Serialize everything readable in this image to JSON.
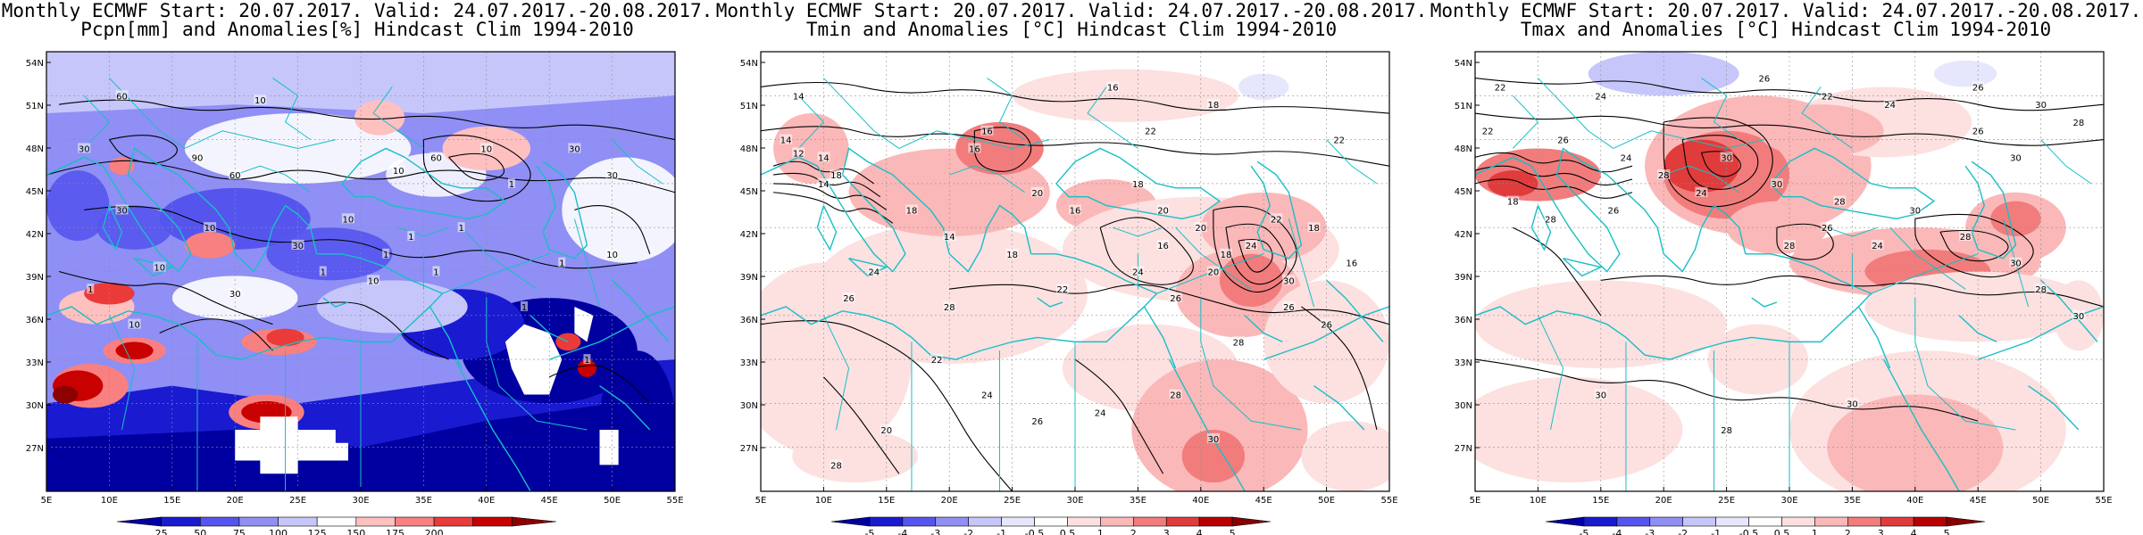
{
  "panels": [
    {
      "title_line1": "Monthly ECMWF Start: 20.07.2017. Valid: 24.07.2017.-20.08.2017.",
      "title_line2": "Pcpn[mm] and Anomalies[%] Hindcast Clim 1994-2010",
      "colorbar": {
        "labels": [
          "25",
          "50",
          "75",
          "100",
          "125",
          "150",
          "175",
          "200"
        ],
        "colors": [
          "#0000a0",
          "#1a1ad0",
          "#5555ee",
          "#8f8ff5",
          "#c6c6fb",
          "#ffffff",
          "#ffc0c0",
          "#f98080",
          "#ea3a3a",
          "#c80000",
          "#8c0000"
        ]
      },
      "contour_labels": [
        "60",
        "10",
        "30",
        "90",
        "60",
        "30",
        "10",
        "30",
        "10",
        "1",
        "10",
        "30",
        "60",
        "10",
        "1",
        "10",
        "1",
        "1",
        "30",
        "10",
        "1",
        "10",
        "1",
        "1",
        "1",
        "10",
        "1",
        "1",
        "30"
      ]
    },
    {
      "title_line1": "Monthly ECMWF Start: 20.07.2017. Valid: 24.07.2017.-20.08.2017.",
      "title_line2": "Tmin and Anomalies [°C] Hindcast Clim 1994-2010",
      "colorbar": {
        "labels": [
          "-5",
          "-4",
          "-3",
          "-2",
          "-1",
          "-0.5",
          "0.5",
          "1",
          "2",
          "3",
          "4",
          "5"
        ],
        "colors": [
          "#0000a0",
          "#1a1ad0",
          "#5555ee",
          "#8f8ff5",
          "#c6c6fb",
          "#e6e6fd",
          "#ffffff",
          "#fde0e0",
          "#fbb8b8",
          "#f27c7c",
          "#e03c3c",
          "#b80000",
          "#880000"
        ]
      },
      "contour_labels": [
        "14",
        "16",
        "18",
        "14",
        "12",
        "16",
        "14",
        "18",
        "16",
        "22",
        "14",
        "18",
        "20",
        "18",
        "16",
        "22",
        "14",
        "18",
        "24",
        "16",
        "20",
        "22",
        "18",
        "24",
        "22",
        "26",
        "20",
        "24",
        "28",
        "26",
        "30",
        "26",
        "22",
        "24",
        "20",
        "28",
        "26",
        "24",
        "28",
        "30",
        "28",
        "26",
        "18",
        "16",
        "20"
      ]
    },
    {
      "title_line1": "Monthly ECMWF Start: 20.07.2017. Valid: 24.07.2017.-20.08.2017.",
      "title_line2": "Tmax and Anomalies [°C] Hindcast Clim 1994-2010",
      "colorbar": {
        "labels": [
          "-5",
          "-4",
          "-3",
          "-2",
          "-1",
          "-0.5",
          "0.5",
          "1",
          "2",
          "3",
          "4",
          "5"
        ],
        "colors": [
          "#0000a0",
          "#1a1ad0",
          "#5555ee",
          "#8f8ff5",
          "#c6c6fb",
          "#e6e6fd",
          "#ffffff",
          "#fde0e0",
          "#fbb8b8",
          "#f27c7c",
          "#e03c3c",
          "#b80000",
          "#880000"
        ]
      },
      "contour_labels": [
        "22",
        "24",
        "26",
        "22",
        "24",
        "26",
        "30",
        "28",
        "26",
        "30",
        "22",
        "26",
        "24",
        "28",
        "30",
        "18",
        "28",
        "26",
        "24",
        "30",
        "28",
        "30",
        "28",
        "30",
        "24",
        "28",
        "26",
        "28",
        "30",
        "30",
        "28",
        "30"
      ]
    }
  ],
  "axes": {
    "lat_labels": [
      "54N",
      "51N",
      "48N",
      "45N",
      "42N",
      "39N",
      "36N",
      "33N",
      "30N",
      "27N"
    ],
    "lon_labels": [
      "5E",
      "10E",
      "15E",
      "20E",
      "25E",
      "30E",
      "35E",
      "40E",
      "45E",
      "50E",
      "55E"
    ]
  }
}
